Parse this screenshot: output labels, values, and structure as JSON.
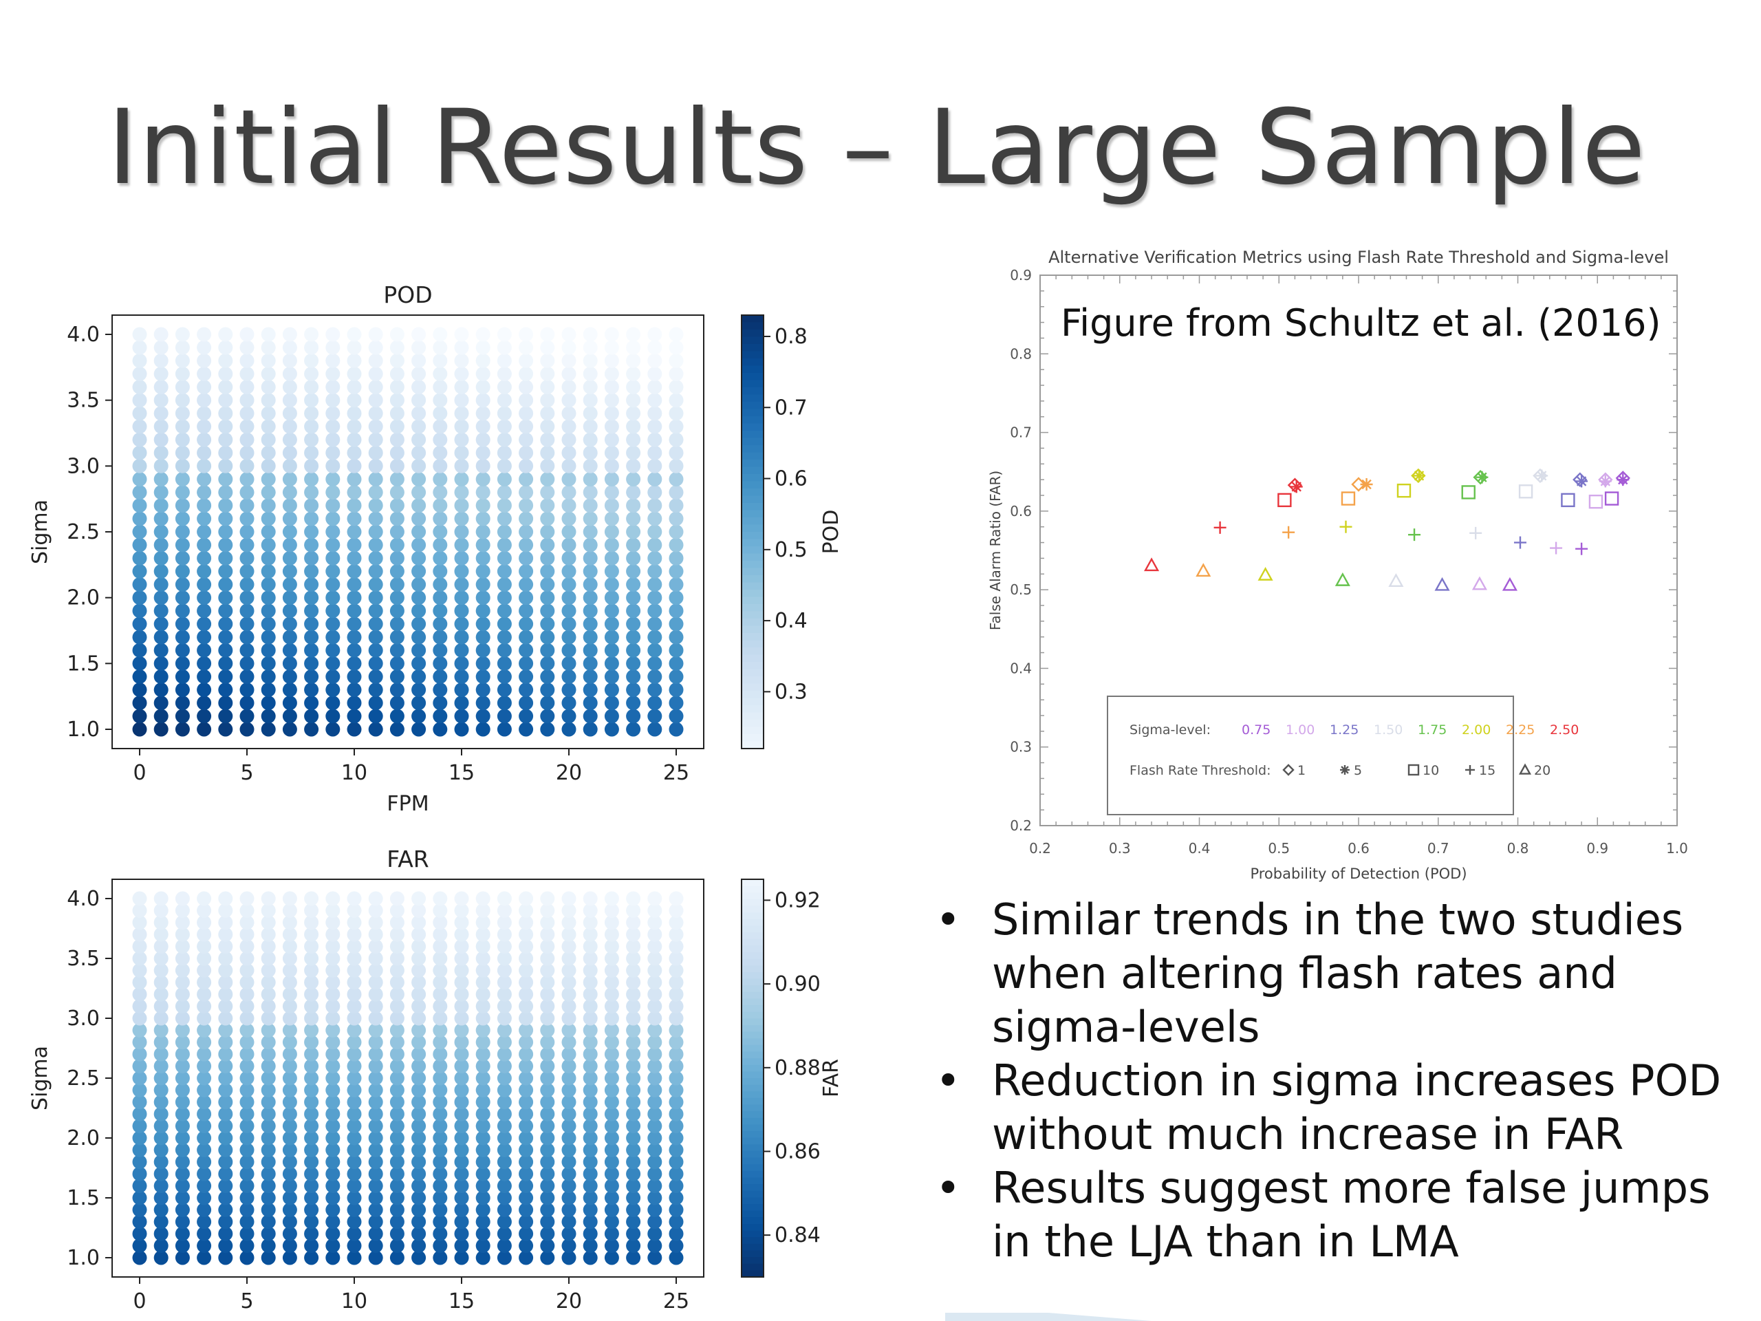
{
  "slide": {
    "title": "Initial Results – Large Sample",
    "figure_credit": "Figure from Schultz et al. (2016)",
    "bullets": [
      {
        "marker": "•",
        "text": "Similar trends in the two studies when altering flash rates and sigma-levels"
      },
      {
        "marker": "•",
        "text": "Reduction in sigma increases POD without much increase in FAR"
      },
      {
        "marker": "•",
        "text": "Results suggest more false jumps in the LJA than in LMA"
      }
    ]
  },
  "colors": {
    "title": "#3f3f3f",
    "sigma_levels": [
      "#a45bd6",
      "#d3a8ea",
      "#7a75c8",
      "#d9dde8",
      "#66c24d",
      "#cfd21e",
      "#f4a24a",
      "#e8353c"
    ]
  },
  "chart_data": [
    {
      "type": "scatter",
      "title": "POD",
      "xlabel": "FPM",
      "ylabel": "Sigma",
      "colorbar_label": "POD",
      "colormap": "Blues",
      "x_range": [
        0,
        25
      ],
      "y_range": [
        1.0,
        4.0
      ],
      "x_step": 1,
      "y_step": 0.1,
      "xticks": [
        "0",
        "5",
        "10",
        "15",
        "20",
        "25"
      ],
      "yticks": [
        "1.0",
        "1.5",
        "2.0",
        "2.5",
        "3.0",
        "3.5",
        "4.0"
      ],
      "colorbar_range": [
        0.22,
        0.83
      ],
      "colorbar_ticks": [
        "0.3",
        "0.4",
        "0.5",
        "0.6",
        "0.7",
        "0.8"
      ],
      "value_model": {
        "at_sigma_1": 0.82,
        "at_sigma_2_9": 0.47,
        "at_sigma_3": 0.38,
        "at_sigma_4": 0.23,
        "fpm_decline_total": 0.12
      },
      "grid": false
    },
    {
      "type": "scatter",
      "title": "FAR",
      "xlabel": "FPM",
      "ylabel": "Sigma",
      "colorbar_label": "FAR",
      "colormap": "Blues_r",
      "x_range": [
        0,
        25
      ],
      "y_range": [
        1.0,
        4.0
      ],
      "x_step": 1,
      "y_step": 0.1,
      "xticks": [
        "0",
        "5",
        "10",
        "15",
        "20",
        "25"
      ],
      "yticks": [
        "1.0",
        "1.5",
        "2.0",
        "2.5",
        "3.0",
        "3.5",
        "4.0"
      ],
      "colorbar_range": [
        0.83,
        0.925
      ],
      "colorbar_ticks": [
        "0.84",
        "0.86",
        "0.88",
        "0.90",
        "0.92"
      ],
      "value_model": {
        "at_sigma_1": 0.841,
        "at_sigma_2_9": 0.89,
        "at_sigma_3": 0.905,
        "at_sigma_4": 0.922,
        "fpm_rise_total": 0.004
      },
      "grid": false
    },
    {
      "type": "scatter",
      "title": "Alternative Verification Metrics using Flash Rate Threshold and Sigma-level",
      "xlabel": "Probability of Detection (POD)",
      "ylabel": "False Alarm Ratio (FAR)",
      "xlim": [
        0.2,
        1.0
      ],
      "ylim": [
        0.2,
        0.9
      ],
      "xticks": [
        "0.2",
        "0.3",
        "0.4",
        "0.5",
        "0.6",
        "0.7",
        "0.8",
        "0.9",
        "1.0"
      ],
      "yticks": [
        "0.2",
        "0.3",
        "0.4",
        "0.5",
        "0.6",
        "0.7",
        "0.8",
        "0.9"
      ],
      "legend": {
        "placement": "bottom-center",
        "sigma_label": "Sigma-level:",
        "sigma_levels": [
          "0.75",
          "1.00",
          "1.25",
          "1.50",
          "1.75",
          "2.00",
          "2.25",
          "2.50"
        ],
        "flash_label": "Flash Rate Threshold:",
        "flash_thresholds": [
          "1",
          "5",
          "10",
          "15",
          "20"
        ]
      },
      "series": [
        {
          "threshold": "1",
          "marker": "diamond",
          "points": [
            {
              "sigma": 2.5,
              "pod": 0.52,
              "far": 0.633
            },
            {
              "sigma": 2.25,
              "pod": 0.6,
              "far": 0.634
            },
            {
              "sigma": 2.0,
              "pod": 0.675,
              "far": 0.645
            },
            {
              "sigma": 1.75,
              "pod": 0.753,
              "far": 0.643
            },
            {
              "sigma": 1.5,
              "pod": 0.828,
              "far": 0.645
            },
            {
              "sigma": 1.25,
              "pod": 0.878,
              "far": 0.64
            },
            {
              "sigma": 1.0,
              "pod": 0.91,
              "far": 0.64
            },
            {
              "sigma": 0.75,
              "pod": 0.932,
              "far": 0.642
            }
          ]
        },
        {
          "threshold": "5",
          "marker": "asterisk",
          "points": [
            {
              "sigma": 2.5,
              "pod": 0.522,
              "far": 0.631
            },
            {
              "sigma": 2.25,
              "pod": 0.61,
              "far": 0.634
            },
            {
              "sigma": 2.0,
              "pod": 0.676,
              "far": 0.645
            },
            {
              "sigma": 1.75,
              "pod": 0.755,
              "far": 0.643
            },
            {
              "sigma": 1.5,
              "pod": 0.83,
              "far": 0.645
            },
            {
              "sigma": 1.25,
              "pod": 0.88,
              "far": 0.638
            },
            {
              "sigma": 1.0,
              "pod": 0.91,
              "far": 0.638
            },
            {
              "sigma": 0.75,
              "pod": 0.932,
              "far": 0.64
            }
          ]
        },
        {
          "threshold": "10",
          "marker": "square",
          "points": [
            {
              "sigma": 2.5,
              "pod": 0.507,
              "far": 0.614
            },
            {
              "sigma": 2.25,
              "pod": 0.587,
              "far": 0.616
            },
            {
              "sigma": 2.0,
              "pod": 0.657,
              "far": 0.626
            },
            {
              "sigma": 1.75,
              "pod": 0.738,
              "far": 0.624
            },
            {
              "sigma": 1.5,
              "pod": 0.81,
              "far": 0.625
            },
            {
              "sigma": 1.25,
              "pod": 0.863,
              "far": 0.614
            },
            {
              "sigma": 1.0,
              "pod": 0.898,
              "far": 0.612
            },
            {
              "sigma": 0.75,
              "pod": 0.918,
              "far": 0.616
            }
          ]
        },
        {
          "threshold": "15",
          "marker": "plus",
          "points": [
            {
              "sigma": 2.5,
              "pod": 0.426,
              "far": 0.579
            },
            {
              "sigma": 2.25,
              "pod": 0.512,
              "far": 0.573
            },
            {
              "sigma": 2.0,
              "pod": 0.584,
              "far": 0.58
            },
            {
              "sigma": 1.75,
              "pod": 0.67,
              "far": 0.57
            },
            {
              "sigma": 1.5,
              "pod": 0.747,
              "far": 0.572
            },
            {
              "sigma": 1.25,
              "pod": 0.803,
              "far": 0.56
            },
            {
              "sigma": 1.0,
              "pod": 0.848,
              "far": 0.553
            },
            {
              "sigma": 0.75,
              "pod": 0.88,
              "far": 0.552
            }
          ]
        },
        {
          "threshold": "20",
          "marker": "triangle",
          "points": [
            {
              "sigma": 2.5,
              "pod": 0.34,
              "far": 0.531
            },
            {
              "sigma": 2.25,
              "pod": 0.405,
              "far": 0.524
            },
            {
              "sigma": 2.0,
              "pod": 0.483,
              "far": 0.519
            },
            {
              "sigma": 1.75,
              "pod": 0.58,
              "far": 0.512
            },
            {
              "sigma": 1.5,
              "pod": 0.647,
              "far": 0.511
            },
            {
              "sigma": 1.25,
              "pod": 0.705,
              "far": 0.506
            },
            {
              "sigma": 1.0,
              "pod": 0.752,
              "far": 0.507
            },
            {
              "sigma": 0.75,
              "pod": 0.79,
              "far": 0.506
            }
          ]
        }
      ],
      "grid": false
    }
  ]
}
